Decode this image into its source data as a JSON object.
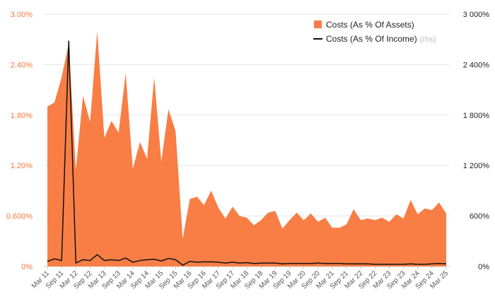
{
  "chart_data": {
    "type": "area",
    "x": [
      "Mar 11",
      "Jun 11",
      "Sep 11",
      "Dec 11",
      "Mar 12",
      "Jun 12",
      "Sep 12",
      "Dec 12",
      "Mar 13",
      "Jun 13",
      "Sep 13",
      "Dec 13",
      "Mar 14",
      "Jun 14",
      "Sep 14",
      "Dec 14",
      "Mar 15",
      "Jun 15",
      "Sep 15",
      "Dec 15",
      "Mar 16",
      "Jun 16",
      "Sep 16",
      "Dec 16",
      "Mar 17",
      "Jun 17",
      "Sep 17",
      "Dec 17",
      "Mar 18",
      "Jun 18",
      "Sep 18",
      "Dec 18",
      "Mar 19",
      "Jun 19",
      "Sep 19",
      "Dec 19",
      "Mar 20",
      "Jun 20",
      "Sep 20",
      "Dec 20",
      "Mar 21",
      "Jun 21",
      "Sep 21",
      "Dec 21",
      "Mar 22",
      "Jun 22",
      "Sep 22",
      "Dec 22",
      "Mar 23",
      "Jun 23",
      "Sep 23",
      "Dec 23",
      "Mar 24",
      "Jun 24",
      "Sep 24",
      "Dec 24",
      "Mar 25"
    ],
    "x_tick_labels": [
      "Mar 11",
      "Sep 11",
      "Mar 12",
      "Sep 12",
      "Mar 13",
      "Sep 13",
      "Mar 14",
      "Sep 14",
      "Mar 15",
      "Sep 15",
      "Mar 16",
      "Sep 16",
      "Mar 17",
      "Sep 17",
      "Mar 18",
      "Sep 18",
      "Mar 19",
      "Sep 19",
      "Mar 20",
      "Sep 20",
      "Mar 21",
      "Sep 21",
      "Mar 22",
      "Sep 22",
      "Mar 23",
      "Sep 23",
      "Mar 24",
      "Sep 24",
      "Mar 25"
    ],
    "series": [
      {
        "name": "Costs (As % Of Assets)",
        "type": "area",
        "axis": "left",
        "color": "#f87e45",
        "values": [
          1.9,
          1.95,
          2.25,
          2.65,
          1.15,
          2.03,
          1.72,
          2.8,
          1.53,
          1.73,
          1.59,
          2.3,
          1.16,
          1.48,
          1.28,
          2.25,
          1.25,
          1.87,
          1.61,
          0.33,
          0.8,
          0.83,
          0.73,
          0.9,
          0.7,
          0.57,
          0.71,
          0.6,
          0.58,
          0.49,
          0.55,
          0.64,
          0.66,
          0.45,
          0.55,
          0.64,
          0.55,
          0.63,
          0.53,
          0.58,
          0.46,
          0.46,
          0.5,
          0.68,
          0.55,
          0.57,
          0.55,
          0.58,
          0.53,
          0.62,
          0.57,
          0.79,
          0.62,
          0.69,
          0.67,
          0.76,
          0.63
        ]
      },
      {
        "name": "Costs (As % Of Income)",
        "type": "line",
        "axis": "right",
        "color": "#111111",
        "values": [
          60,
          90,
          70,
          2680,
          40,
          80,
          70,
          140,
          70,
          80,
          70,
          100,
          50,
          70,
          80,
          85,
          65,
          95,
          80,
          15,
          60,
          50,
          55,
          55,
          50,
          40,
          50,
          40,
          45,
          35,
          40,
          40,
          40,
          30,
          35,
          35,
          35,
          35,
          40,
          35,
          35,
          35,
          30,
          30,
          30,
          30,
          25,
          25,
          25,
          25,
          25,
          30,
          25,
          25,
          30,
          35,
          30
        ]
      }
    ],
    "y_left": {
      "ylim": [
        0,
        3.0
      ],
      "ticks": [
        "0%",
        "0.600%",
        "1.20%",
        "1.80%",
        "2.40%",
        "3.00%"
      ]
    },
    "y_right": {
      "ylim": [
        0,
        3000
      ],
      "ticks": [
        "0%",
        "600%",
        "1 200%",
        "1 800%",
        "2 400%",
        "3 000%"
      ]
    },
    "legend": {
      "position": "top-right",
      "items": [
        {
          "label": "Costs (As % Of Assets)",
          "note": "",
          "swatch": "square"
        },
        {
          "label": "Costs (As % Of Income)",
          "note": "(rhs)",
          "swatch": "line"
        }
      ]
    },
    "grid": true,
    "colors": {
      "area": "#f87e45",
      "line": "#111111",
      "grid": "#e6e6e6",
      "left_axis_text": "#f0783c"
    }
  }
}
